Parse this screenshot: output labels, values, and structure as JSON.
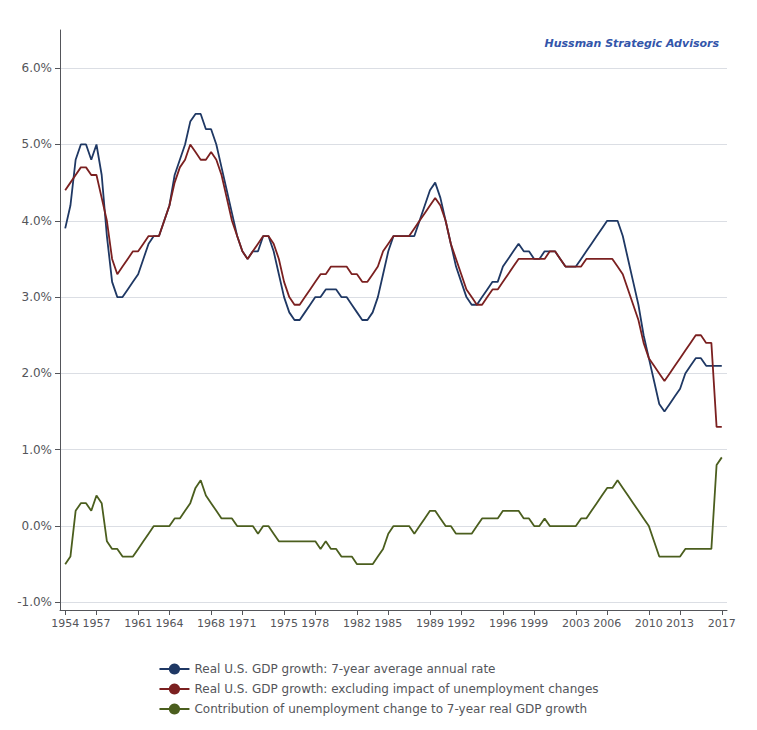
{
  "chart_data": {
    "type": "line",
    "annotations": [
      "Hussman Strategic Advisors"
    ],
    "x": [
      1954.0,
      1954.5,
      1955.0,
      1955.5,
      1956.0,
      1956.5,
      1957.0,
      1957.5,
      1958.0,
      1958.5,
      1959.0,
      1959.5,
      1960.0,
      1960.5,
      1961.0,
      1961.5,
      1962.0,
      1962.5,
      1963.0,
      1963.5,
      1964.0,
      1964.5,
      1965.0,
      1965.5,
      1966.0,
      1966.5,
      1967.0,
      1967.5,
      1968.0,
      1968.5,
      1969.0,
      1969.5,
      1970.0,
      1970.5,
      1971.0,
      1971.5,
      1972.0,
      1972.5,
      1973.0,
      1973.5,
      1974.0,
      1974.5,
      1975.0,
      1975.5,
      1976.0,
      1976.5,
      1977.0,
      1977.5,
      1978.0,
      1978.5,
      1979.0,
      1979.5,
      1980.0,
      1980.5,
      1981.0,
      1981.5,
      1982.0,
      1982.5,
      1983.0,
      1983.5,
      1984.0,
      1984.5,
      1985.0,
      1985.5,
      1986.0,
      1986.5,
      1987.0,
      1987.5,
      1988.0,
      1988.5,
      1989.0,
      1989.5,
      1990.0,
      1990.5,
      1991.0,
      1991.5,
      1992.0,
      1992.5,
      1993.0,
      1993.5,
      1994.0,
      1994.5,
      1995.0,
      1995.5,
      1996.0,
      1996.5,
      1997.0,
      1997.5,
      1998.0,
      1998.5,
      1999.0,
      1999.5,
      2000.0,
      2000.5,
      2001.0,
      2001.5,
      2002.0,
      2002.5,
      2003.0,
      2003.5,
      2004.0,
      2004.5,
      2005.0,
      2005.5,
      2006.0,
      2006.5,
      2007.0,
      2007.5,
      2008.0,
      2008.5,
      2009.0,
      2009.5,
      2010.0,
      2010.5,
      2011.0,
      2011.5,
      2012.0,
      2012.5,
      2013.0,
      2013.5,
      2014.0,
      2014.5,
      2015.0,
      2015.5,
      2016.0,
      2016.5,
      2017.0
    ],
    "series": [
      {
        "name": "Real U.S. GDP growth: 7-year average annual rate",
        "color": "#1F3864",
        "values": [
          0.039,
          0.042,
          0.048,
          0.05,
          0.05,
          0.048,
          0.05,
          0.046,
          0.038,
          0.032,
          0.03,
          0.03,
          0.031,
          0.032,
          0.033,
          0.035,
          0.037,
          0.038,
          0.038,
          0.04,
          0.042,
          0.046,
          0.048,
          0.05,
          0.053,
          0.054,
          0.054,
          0.052,
          0.052,
          0.05,
          0.047,
          0.044,
          0.041,
          0.038,
          0.036,
          0.035,
          0.036,
          0.036,
          0.038,
          0.038,
          0.036,
          0.033,
          0.03,
          0.028,
          0.027,
          0.027,
          0.028,
          0.029,
          0.03,
          0.03,
          0.031,
          0.031,
          0.031,
          0.03,
          0.03,
          0.029,
          0.028,
          0.027,
          0.027,
          0.028,
          0.03,
          0.033,
          0.036,
          0.038,
          0.038,
          0.038,
          0.038,
          0.038,
          0.04,
          0.042,
          0.044,
          0.045,
          0.043,
          0.04,
          0.037,
          0.034,
          0.032,
          0.03,
          0.029,
          0.029,
          0.03,
          0.031,
          0.032,
          0.032,
          0.034,
          0.035,
          0.036,
          0.037,
          0.036,
          0.036,
          0.035,
          0.035,
          0.036,
          0.036,
          0.036,
          0.035,
          0.034,
          0.034,
          0.034,
          0.035,
          0.036,
          0.037,
          0.038,
          0.039,
          0.04,
          0.04,
          0.04,
          0.038,
          0.035,
          0.032,
          0.029,
          0.025,
          0.022,
          0.019,
          0.016,
          0.015,
          0.016,
          0.017,
          0.018,
          0.02,
          0.021,
          0.022,
          0.022,
          0.021,
          0.021,
          0.021,
          0.021
        ]
      },
      {
        "name": "Real U.S. GDP growth: excluding impact of unemployment changes",
        "color": "#7B2020",
        "values": [
          0.044,
          0.045,
          0.046,
          0.047,
          0.047,
          0.046,
          0.046,
          0.043,
          0.04,
          0.035,
          0.033,
          0.034,
          0.035,
          0.036,
          0.036,
          0.037,
          0.038,
          0.038,
          0.038,
          0.04,
          0.042,
          0.045,
          0.047,
          0.048,
          0.05,
          0.049,
          0.048,
          0.048,
          0.049,
          0.048,
          0.046,
          0.043,
          0.04,
          0.038,
          0.036,
          0.035,
          0.036,
          0.037,
          0.038,
          0.038,
          0.037,
          0.035,
          0.032,
          0.03,
          0.029,
          0.029,
          0.03,
          0.031,
          0.032,
          0.033,
          0.033,
          0.034,
          0.034,
          0.034,
          0.034,
          0.033,
          0.033,
          0.032,
          0.032,
          0.033,
          0.034,
          0.036,
          0.037,
          0.038,
          0.038,
          0.038,
          0.038,
          0.039,
          0.04,
          0.041,
          0.042,
          0.043,
          0.042,
          0.04,
          0.037,
          0.035,
          0.033,
          0.031,
          0.03,
          0.029,
          0.029,
          0.03,
          0.031,
          0.031,
          0.032,
          0.033,
          0.034,
          0.035,
          0.035,
          0.035,
          0.035,
          0.035,
          0.035,
          0.036,
          0.036,
          0.035,
          0.034,
          0.034,
          0.034,
          0.034,
          0.035,
          0.035,
          0.035,
          0.035,
          0.035,
          0.035,
          0.034,
          0.033,
          0.031,
          0.029,
          0.027,
          0.024,
          0.022,
          0.021,
          0.02,
          0.019,
          0.02,
          0.021,
          0.022,
          0.023,
          0.024,
          0.025,
          0.025,
          0.024,
          0.024,
          0.013,
          0.013
        ]
      },
      {
        "name": "Contribution of unemployment change to 7-year real GDP growth",
        "color": "#4B5E1E",
        "values": [
          -0.005,
          -0.004,
          0.002,
          0.003,
          0.003,
          0.002,
          0.004,
          0.003,
          -0.002,
          -0.003,
          -0.003,
          -0.004,
          -0.004,
          -0.004,
          -0.003,
          -0.002,
          -0.001,
          0.0,
          0.0,
          0.0,
          0.0,
          0.001,
          0.001,
          0.002,
          0.003,
          0.005,
          0.006,
          0.004,
          0.003,
          0.002,
          0.001,
          0.001,
          0.001,
          0.0,
          0.0,
          0.0,
          0.0,
          -0.001,
          0.0,
          0.0,
          -0.001,
          -0.002,
          -0.002,
          -0.002,
          -0.002,
          -0.002,
          -0.002,
          -0.002,
          -0.002,
          -0.003,
          -0.002,
          -0.003,
          -0.003,
          -0.004,
          -0.004,
          -0.004,
          -0.005,
          -0.005,
          -0.005,
          -0.005,
          -0.004,
          -0.003,
          -0.001,
          0.0,
          0.0,
          0.0,
          0.0,
          -0.001,
          0.0,
          0.001,
          0.002,
          0.002,
          0.001,
          0.0,
          0.0,
          -0.001,
          -0.001,
          -0.001,
          -0.001,
          0.0,
          0.001,
          0.001,
          0.001,
          0.001,
          0.002,
          0.002,
          0.002,
          0.002,
          0.001,
          0.001,
          0.0,
          0.0,
          0.001,
          0.0,
          0.0,
          0.0,
          0.0,
          0.0,
          0.0,
          0.001,
          0.001,
          0.002,
          0.003,
          0.004,
          0.005,
          0.005,
          0.006,
          0.005,
          0.004,
          0.003,
          0.002,
          0.001,
          0.0,
          -0.002,
          -0.004,
          -0.004,
          -0.004,
          -0.004,
          -0.004,
          -0.003,
          -0.003,
          -0.003,
          -0.003,
          -0.003,
          -0.003,
          0.008,
          0.009
        ]
      }
    ],
    "xlim": [
      1953.5,
      2017.5
    ],
    "xticks": [
      1954,
      1957,
      1961,
      1964,
      1968,
      1971,
      1975,
      1978,
      1982,
      1985,
      1989,
      1992,
      1996,
      1999,
      2003,
      2006,
      2010,
      2013,
      2017
    ],
    "ylim": [
      -0.011,
      0.065
    ],
    "yticks": [
      {
        "value": -0.01,
        "label": "-1.0%"
      },
      {
        "value": 0.0,
        "label": "0.0%"
      },
      {
        "value": 0.01,
        "label": "1.0%"
      },
      {
        "value": 0.02,
        "label": "2.0%"
      },
      {
        "value": 0.03,
        "label": "3.0%"
      },
      {
        "value": 0.04,
        "label": "4.0%"
      },
      {
        "value": 0.05,
        "label": "5.0%"
      },
      {
        "value": 0.06,
        "label": "6.0%"
      }
    ],
    "grid": true,
    "legend": "bottom"
  }
}
